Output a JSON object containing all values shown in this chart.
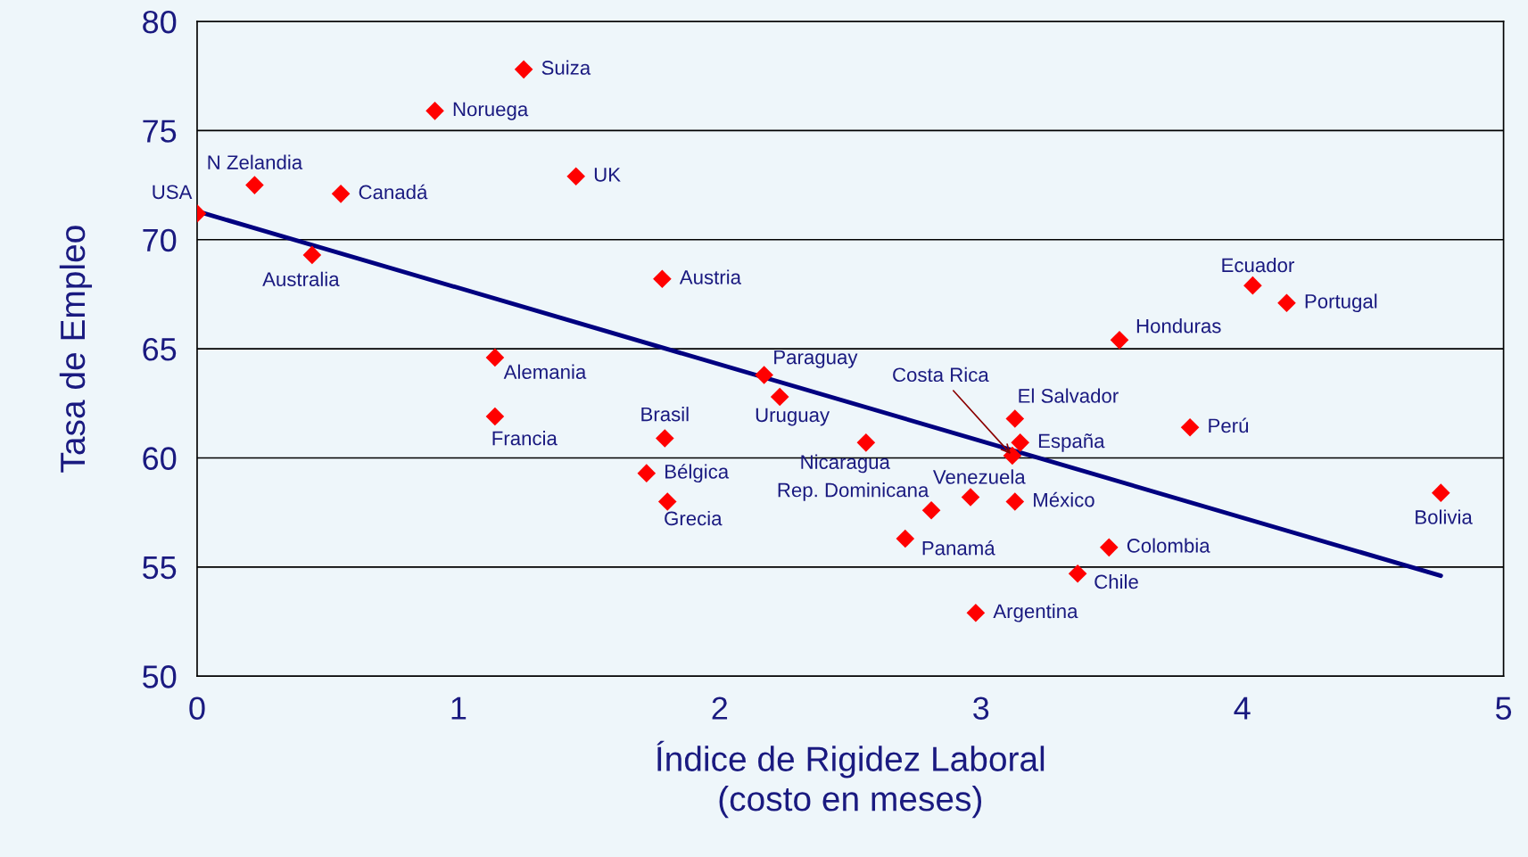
{
  "chart_data": {
    "type": "scatter",
    "xlabel": "Índice de Rigidez Laboral\n(costo en meses)",
    "ylabel": "Tasa de Empleo",
    "xlim": [
      0,
      5
    ],
    "ylim": [
      50,
      80
    ],
    "xticks": [
      0,
      1,
      2,
      3,
      4,
      5
    ],
    "yticks": [
      50,
      55,
      60,
      65,
      70,
      75,
      80
    ],
    "grid": "y",
    "legend": false,
    "series": [
      {
        "color": "#ff0000",
        "marker": "diamond",
        "x": [
          0,
          0.22,
          0.44,
          0.55,
          0.91,
          1.25,
          1.45,
          1.14,
          1.14,
          1.78,
          1.79,
          1.72,
          1.8,
          2.17,
          2.23,
          2.56,
          2.81,
          2.71,
          2.96,
          2.98,
          3.12,
          3.13,
          3.15,
          3.13,
          3.37,
          3.49,
          3.53,
          3.8,
          4.04,
          4.17,
          4.76
        ],
        "values": [
          71.2,
          72.5,
          69.3,
          72.1,
          75.9,
          77.8,
          72.9,
          64.6,
          61.9,
          68.2,
          60.9,
          59.3,
          58.0,
          63.8,
          62.8,
          60.7,
          57.6,
          56.3,
          58.2,
          52.9,
          60.1,
          61.8,
          60.7,
          58.0,
          54.7,
          55.9,
          65.4,
          61.4,
          67.9,
          67.1,
          58.4
        ]
      },
      {
        "type": "line",
        "color": "#000080",
        "marker": "none",
        "line_style": "solid",
        "x": [
          0,
          4.76
        ],
        "values": [
          71.3,
          54.6
        ]
      }
    ],
    "annotations": [
      {
        "text": "USA",
        "x": 0,
        "y": 71.2
      },
      {
        "text": "N Zelandia",
        "x": 0.22,
        "y": 72.5
      },
      {
        "text": "Australia",
        "x": 0.44,
        "y": 69.3
      },
      {
        "text": "Canadá",
        "x": 0.55,
        "y": 72.1
      },
      {
        "text": "Noruega",
        "x": 0.91,
        "y": 75.9
      },
      {
        "text": "Suiza",
        "x": 1.25,
        "y": 77.8
      },
      {
        "text": "UK",
        "x": 1.45,
        "y": 72.9
      },
      {
        "text": "Alemania",
        "x": 1.14,
        "y": 64.6
      },
      {
        "text": "Francia",
        "x": 1.14,
        "y": 61.9
      },
      {
        "text": "Austria",
        "x": 1.78,
        "y": 68.2
      },
      {
        "text": "Brasil",
        "x": 1.79,
        "y": 60.9
      },
      {
        "text": "Bélgica",
        "x": 1.72,
        "y": 59.3
      },
      {
        "text": "Grecia",
        "x": 1.8,
        "y": 58.0
      },
      {
        "text": "Paraguay",
        "x": 2.17,
        "y": 63.8
      },
      {
        "text": "Uruguay",
        "x": 2.23,
        "y": 62.8
      },
      {
        "text": "Nicaragua",
        "x": 2.56,
        "y": 60.7
      },
      {
        "text": "Rep. Dominicana",
        "x": 2.81,
        "y": 57.6
      },
      {
        "text": "Panamá",
        "x": 2.71,
        "y": 56.3
      },
      {
        "text": "Venezuela",
        "x": 2.96,
        "y": 58.2
      },
      {
        "text": "Argentina",
        "x": 2.98,
        "y": 52.9
      },
      {
        "text": "Costa Rica",
        "x": 3.12,
        "y": 60.1
      },
      {
        "text": "El Salvador",
        "x": 3.13,
        "y": 61.8
      },
      {
        "text": "España",
        "x": 3.15,
        "y": 60.7
      },
      {
        "text": "México",
        "x": 3.13,
        "y": 58.0
      },
      {
        "text": "Chile",
        "x": 3.37,
        "y": 54.7
      },
      {
        "text": "Colombia",
        "x": 3.49,
        "y": 55.9
      },
      {
        "text": "Honduras",
        "x": 3.53,
        "y": 65.4
      },
      {
        "text": "Perú",
        "x": 3.8,
        "y": 61.4
      },
      {
        "text": "Ecuador",
        "x": 4.04,
        "y": 67.9
      },
      {
        "text": "Portugal",
        "x": 4.17,
        "y": 67.1
      },
      {
        "text": "Bolivia",
        "x": 4.76,
        "y": 58.4
      }
    ]
  }
}
